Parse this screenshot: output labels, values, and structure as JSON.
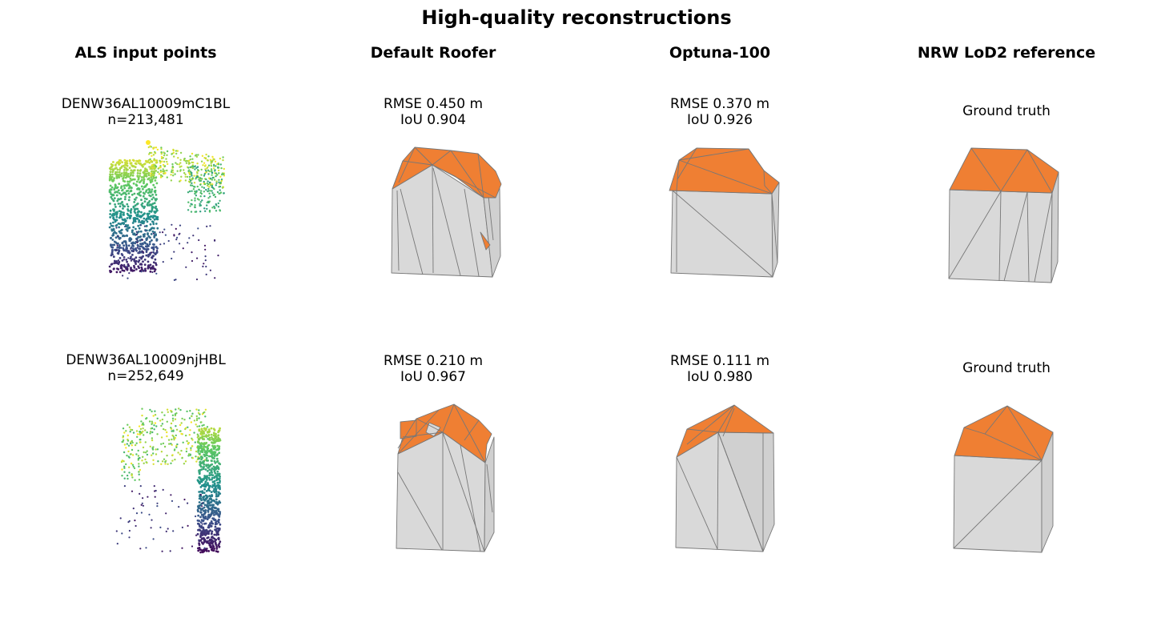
{
  "title": "High-quality reconstructions",
  "columns": [
    "ALS input points",
    "Default Roofer",
    "Optuna-100",
    "NRW LoD2 reference"
  ],
  "rows": [
    {
      "building_id": "DENW36AL10009mC1BL",
      "n_points": "n=213,481",
      "default_roofer": {
        "rmse": "RMSE 0.450 m",
        "iou": "IoU 0.904"
      },
      "optuna_100": {
        "rmse": "RMSE 0.370 m",
        "iou": "IoU 0.926"
      },
      "reference": "Ground truth"
    },
    {
      "building_id": "DENW36AL10009njHBL",
      "n_points": "n=252,649",
      "default_roofer": {
        "rmse": "RMSE 0.210 m",
        "iou": "IoU 0.967"
      },
      "optuna_100": {
        "rmse": "RMSE 0.111 m",
        "iou": "IoU 0.980"
      },
      "reference": "Ground truth"
    }
  ],
  "colors": {
    "roof": "#ef7f33",
    "wall": "#d9d9d9",
    "edge": "#777777",
    "colormap": [
      "#440154",
      "#3b528b",
      "#21918c",
      "#5ec962",
      "#fde725"
    ]
  }
}
